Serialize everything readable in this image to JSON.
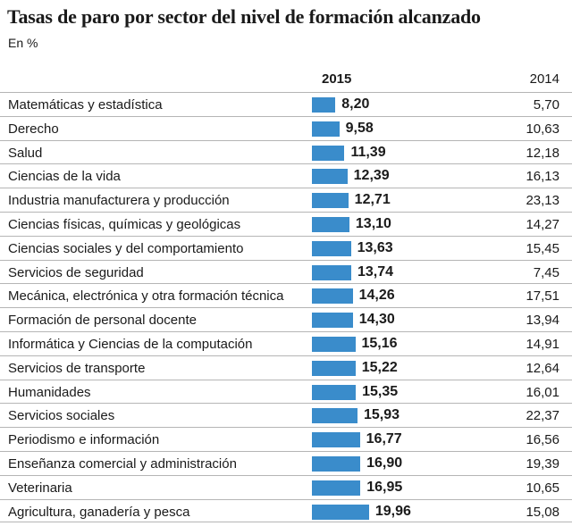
{
  "chart_data": {
    "type": "bar",
    "title": "Tasas de paro por sector del nivel de formación alcanzado",
    "subtitle": "En %",
    "columns": [
      "2015",
      "2014"
    ],
    "categories": [
      "Matemáticas y estadística",
      "Derecho",
      "Salud",
      "Ciencias de la vida",
      "Industria manufacturera y producción",
      "Ciencias físicas, químicas y geológicas",
      "Ciencias sociales y del comportamiento",
      "Servicios de seguridad",
      "Mecánica, electrónica y otra formación técnica",
      "Formación de personal docente",
      "Informática y Ciencias de la computación",
      "Servicios de transporte",
      "Humanidades",
      "Servicios sociales",
      "Periodismo e información",
      "Enseñanza comercial y administración",
      "Veterinaria",
      "Agricultura, ganadería y pesca"
    ],
    "series": [
      {
        "name": "2015",
        "values": [
          8.2,
          9.58,
          11.39,
          12.39,
          12.71,
          13.1,
          13.63,
          13.74,
          14.26,
          14.3,
          15.16,
          15.22,
          15.35,
          15.93,
          16.77,
          16.9,
          16.95,
          19.96
        ],
        "labels": [
          "8,20",
          "9,58",
          "11,39",
          "12,39",
          "12,71",
          "13,10",
          "13,63",
          "13,74",
          "14,26",
          "14,30",
          "15,16",
          "15,22",
          "15,35",
          "15,93",
          "16,77",
          "16,90",
          "16,95",
          "19,96"
        ],
        "color": "#3a8ccb"
      },
      {
        "name": "2014",
        "values": [
          5.7,
          10.63,
          12.18,
          16.13,
          23.13,
          14.27,
          15.45,
          7.45,
          17.51,
          13.94,
          14.91,
          12.64,
          16.01,
          22.37,
          16.56,
          19.39,
          10.65,
          15.08
        ],
        "labels": [
          "5,70",
          "10,63",
          "12,18",
          "16,13",
          "23,13",
          "14,27",
          "15,45",
          "7,45",
          "17,51",
          "13,94",
          "14,91",
          "12,64",
          "16,01",
          "22,37",
          "16,56",
          "19,39",
          "10,65",
          "15,08"
        ]
      }
    ]
  }
}
